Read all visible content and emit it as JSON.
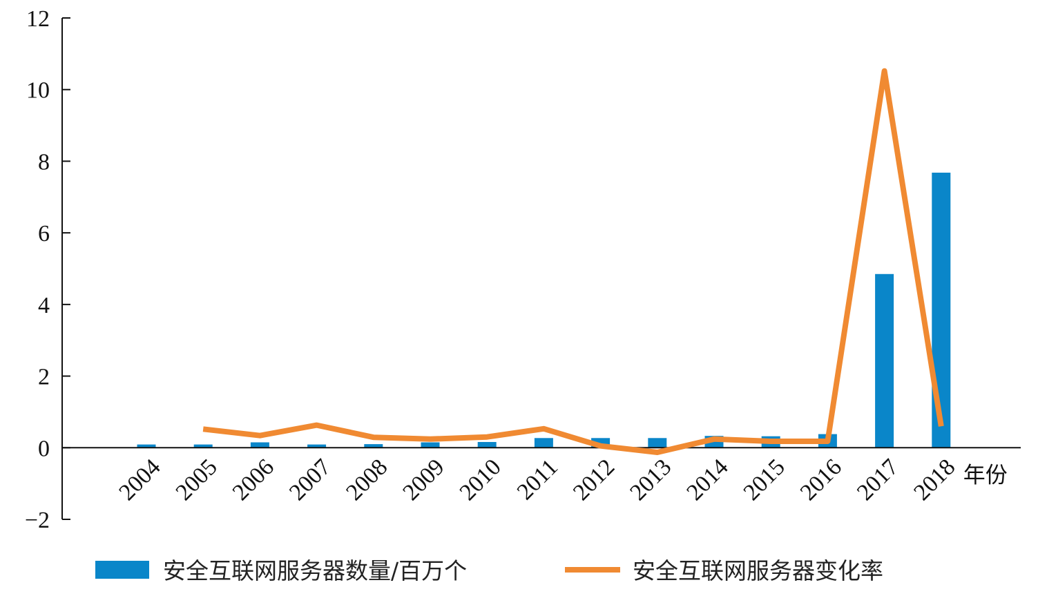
{
  "chart_data": {
    "type": "bar+line",
    "categories": [
      "2004",
      "2005",
      "2006",
      "2007",
      "2008",
      "2009",
      "2010",
      "2011",
      "2012",
      "2013",
      "2014",
      "2015",
      "2016",
      "2017",
      "2018"
    ],
    "xlabel": "年份",
    "ylabel": "",
    "ylim": [
      -2,
      12
    ],
    "yticks": [
      -2,
      0,
      2,
      4,
      6,
      8,
      10,
      12
    ],
    "ytick_labels": [
      "−2",
      "0",
      "2",
      "4",
      "6",
      "8",
      "10",
      "12"
    ],
    "grid": false,
    "legend_position": "bottom",
    "series": [
      {
        "name": "安全互联网服务器数量/百万个",
        "type": "bar",
        "color": "#0a86c9",
        "values": [
          0.09,
          0.09,
          0.15,
          0.09,
          0.1,
          0.15,
          0.16,
          0.27,
          0.27,
          0.27,
          0.33,
          0.32,
          0.38,
          4.85,
          7.68
        ]
      },
      {
        "name": "安全互联网服务器变化率",
        "type": "line",
        "color": "#f08a32",
        "values": [
          null,
          0.52,
          0.34,
          0.63,
          0.29,
          0.24,
          0.3,
          0.53,
          0.05,
          -0.13,
          0.24,
          0.18,
          0.18,
          10.52,
          0.6
        ]
      }
    ]
  }
}
